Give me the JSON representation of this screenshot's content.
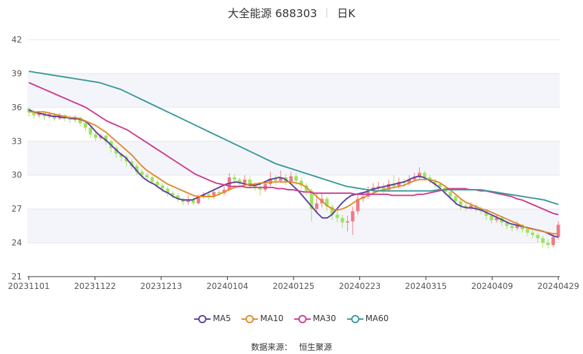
{
  "header": {
    "stock_title": "大全能源 688303",
    "period": "日K"
  },
  "footer": {
    "source_label": "数据来源：",
    "source_name": "恒生聚源"
  },
  "colors": {
    "up": "#f07b85",
    "down": "#9ee45c",
    "MA5": "#5b3fa3",
    "MA10": "#e08b2e",
    "MA30": "#cc3d8f",
    "MA60": "#3a9a9a"
  },
  "chart_data": {
    "type": "candlestick",
    "title": "大全能源 688303",
    "ylim": [
      21,
      42
    ],
    "yticks": [
      21,
      24,
      27,
      30,
      33,
      36,
      39,
      42
    ],
    "xtick_labels": [
      "20231101",
      "20231122",
      "20231213",
      "20240104",
      "20240125",
      "20240223",
      "20240315",
      "20240409",
      "20240429"
    ],
    "xtick_indices": [
      0,
      15,
      30,
      45,
      60,
      75,
      90,
      105,
      120
    ],
    "series": [
      {
        "name": "MA5",
        "values": [
          35.8,
          35.6,
          35.5,
          35.4,
          35.3,
          35.2,
          35.2,
          35.1,
          35.1,
          35.0,
          35.0,
          34.9,
          34.7,
          34.3,
          33.8,
          33.4,
          33.1,
          32.7,
          32.3,
          31.9,
          31.6,
          31.1,
          30.6,
          30.1,
          29.7,
          29.4,
          29.2,
          28.9,
          28.6,
          28.4,
          28.1,
          27.9,
          27.8,
          27.8,
          27.8,
          28.0,
          28.2,
          28.4,
          28.6,
          28.8,
          29.0,
          29.2,
          29.3,
          29.4,
          29.3,
          29.2,
          29.1,
          29.1,
          29.2,
          29.4,
          29.6,
          29.7,
          29.8,
          29.7,
          29.4,
          29.0,
          28.6,
          28.1,
          27.6,
          27.1,
          26.6,
          26.2,
          26.2,
          26.5,
          27.0,
          27.5,
          27.9,
          28.2,
          28.3,
          28.4,
          28.5,
          28.7,
          28.8,
          28.9,
          29.0,
          29.1,
          29.2,
          29.3,
          29.4,
          29.6,
          29.8,
          29.9,
          29.8,
          29.6,
          29.3,
          29.0,
          28.6,
          28.2,
          27.8,
          27.4,
          27.2,
          27.1,
          27.1,
          27.0,
          26.9,
          26.7,
          26.5,
          26.3,
          26.1,
          25.9,
          25.7,
          25.6,
          25.5,
          25.4,
          25.3,
          25.2,
          25.1,
          25.0,
          24.8,
          24.6,
          24.5
        ],
        "note_x_start": 0
      },
      {
        "name": "MA10",
        "values": [
          35.6,
          35.6,
          35.6,
          35.6,
          35.5,
          35.4,
          35.3,
          35.2,
          35.1,
          35.1,
          35.0,
          34.8,
          34.6,
          34.4,
          34.1,
          33.8,
          33.4,
          33.0,
          32.6,
          32.2,
          31.8,
          31.3,
          30.8,
          30.4,
          30.1,
          29.8,
          29.5,
          29.2,
          29.0,
          28.8,
          28.6,
          28.4,
          28.2,
          28.1,
          28.1,
          28.1,
          28.1,
          28.3,
          28.5,
          28.7,
          28.9,
          29.0,
          29.1,
          29.2,
          29.2,
          29.3,
          29.3,
          29.4,
          29.4,
          29.4,
          29.4,
          29.4,
          29.3,
          29.2,
          28.9,
          28.5,
          28.1,
          27.7,
          27.3,
          27.0,
          26.9,
          27.0,
          27.2,
          27.5,
          27.8,
          28.0,
          28.2,
          28.4,
          28.6,
          28.7,
          28.8,
          28.9,
          29.0,
          29.1,
          29.3,
          29.5,
          29.6,
          29.6,
          29.6,
          29.5,
          29.3,
          29.0,
          28.7,
          28.3,
          27.9,
          27.6,
          27.4,
          27.2,
          27.0,
          26.9,
          26.7,
          26.5,
          26.3,
          26.1,
          25.9,
          25.7,
          25.5,
          25.3,
          25.2,
          25.1,
          25.0,
          24.9,
          24.8,
          24.8
        ],
        "note_x_start": 0
      },
      {
        "name": "MA30",
        "values": [
          38.2,
          38.0,
          37.8,
          37.6,
          37.4,
          37.2,
          37.0,
          36.8,
          36.6,
          36.4,
          36.2,
          36.0,
          35.7,
          35.4,
          35.1,
          34.8,
          34.6,
          34.4,
          34.2,
          34.0,
          33.7,
          33.4,
          33.1,
          32.8,
          32.5,
          32.2,
          31.9,
          31.6,
          31.3,
          31.0,
          30.7,
          30.4,
          30.1,
          29.9,
          29.7,
          29.5,
          29.3,
          29.2,
          29.1,
          29.0,
          29.0,
          29.0,
          28.9,
          28.9,
          28.9,
          28.9,
          28.9,
          28.9,
          28.8,
          28.8,
          28.7,
          28.7,
          28.6,
          28.5,
          28.5,
          28.4,
          28.4,
          28.4,
          28.4,
          28.4,
          28.4,
          28.4,
          28.4,
          28.3,
          28.3,
          28.3,
          28.3,
          28.3,
          28.3,
          28.3,
          28.2,
          28.2,
          28.2,
          28.2,
          28.2,
          28.3,
          28.3,
          28.4,
          28.5,
          28.6,
          28.7,
          28.8,
          28.8,
          28.8,
          28.8,
          28.7,
          28.7,
          28.6,
          28.6,
          28.5,
          28.4,
          28.3,
          28.2,
          28.1,
          27.9,
          27.8,
          27.6,
          27.4,
          27.2,
          27.0,
          26.8,
          26.6,
          26.5
        ],
        "note_x_start": 0
      },
      {
        "name": "MA60",
        "values": [
          39.2,
          39.1,
          39.0,
          38.9,
          38.8,
          38.7,
          38.6,
          38.5,
          38.4,
          38.3,
          38.2,
          38.0,
          37.8,
          37.6,
          37.3,
          37.0,
          36.7,
          36.4,
          36.1,
          35.8,
          35.5,
          35.2,
          34.9,
          34.6,
          34.3,
          34.0,
          33.7,
          33.4,
          33.1,
          32.8,
          32.5,
          32.2,
          31.9,
          31.6,
          31.3,
          31.0,
          30.8,
          30.6,
          30.4,
          30.2,
          30.0,
          29.8,
          29.6,
          29.4,
          29.2,
          29.0,
          28.9,
          28.8,
          28.7,
          28.6,
          28.6,
          28.6,
          28.6,
          28.6,
          28.6,
          28.6,
          28.6,
          28.6,
          28.7,
          28.7,
          28.7,
          28.7,
          28.7,
          28.7,
          28.7,
          28.6,
          28.5,
          28.4,
          28.3,
          28.2,
          28.1,
          28.0,
          27.9,
          27.8,
          27.6,
          27.4
        ],
        "note_x_start": 0
      }
    ],
    "candles": [
      [
        35.9,
        35.6,
        36.0,
        35.2
      ],
      [
        35.6,
        35.3,
        35.8,
        35.0
      ],
      [
        35.3,
        35.5,
        35.7,
        35.1
      ],
      [
        35.5,
        35.2,
        35.6,
        34.9
      ],
      [
        35.2,
        35.4,
        35.6,
        35.0
      ],
      [
        35.4,
        35.0,
        35.5,
        34.8
      ],
      [
        35.0,
        35.3,
        35.5,
        34.9
      ],
      [
        35.3,
        35.1,
        35.4,
        34.8
      ],
      [
        35.1,
        34.9,
        35.3,
        34.6
      ],
      [
        34.9,
        35.1,
        35.3,
        34.7
      ],
      [
        35.1,
        34.6,
        35.2,
        34.3
      ],
      [
        34.6,
        34.2,
        34.8,
        33.9
      ],
      [
        34.2,
        33.6,
        34.3,
        33.3
      ],
      [
        33.6,
        33.3,
        33.8,
        33.0
      ],
      [
        33.3,
        33.5,
        33.7,
        33.1
      ],
      [
        33.5,
        33.0,
        33.6,
        32.7
      ],
      [
        33.0,
        32.4,
        33.1,
        32.0
      ],
      [
        32.4,
        31.9,
        32.6,
        31.5
      ],
      [
        31.9,
        31.6,
        32.0,
        31.2
      ],
      [
        31.6,
        31.2,
        31.8,
        30.8
      ],
      [
        31.2,
        30.8,
        31.4,
        30.5
      ],
      [
        30.8,
        30.3,
        31.0,
        30.0
      ],
      [
        30.3,
        30.0,
        30.5,
        29.6
      ],
      [
        30.0,
        29.8,
        30.2,
        29.5
      ],
      [
        29.8,
        29.4,
        30.0,
        29.2
      ],
      [
        29.4,
        29.1,
        29.6,
        28.8
      ],
      [
        29.1,
        28.8,
        29.3,
        28.5
      ],
      [
        28.8,
        28.4,
        29.0,
        28.1
      ],
      [
        28.4,
        28.2,
        28.6,
        27.9
      ],
      [
        28.2,
        27.9,
        28.4,
        27.6
      ],
      [
        27.9,
        27.6,
        28.0,
        27.3
      ],
      [
        27.6,
        27.8,
        28.2,
        27.4
      ],
      [
        27.8,
        27.5,
        28.0,
        27.3
      ],
      [
        27.5,
        28.1,
        28.3,
        27.4
      ],
      [
        28.1,
        28.3,
        28.5,
        27.9
      ],
      [
        28.3,
        28.1,
        28.6,
        27.8
      ],
      [
        28.1,
        28.5,
        28.8,
        27.9
      ],
      [
        28.5,
        28.4,
        28.7,
        28.1
      ],
      [
        28.4,
        28.7,
        29.0,
        28.2
      ],
      [
        28.7,
        29.8,
        30.2,
        28.6
      ],
      [
        29.8,
        29.6,
        30.1,
        29.2
      ],
      [
        29.6,
        29.3,
        29.8,
        28.9
      ],
      [
        29.3,
        29.6,
        30.0,
        29.1
      ],
      [
        29.6,
        29.2,
        29.9,
        28.8
      ],
      [
        29.2,
        28.9,
        29.4,
        28.6
      ],
      [
        28.9,
        28.7,
        29.1,
        28.2
      ],
      [
        28.7,
        29.2,
        29.5,
        28.5
      ],
      [
        29.2,
        29.7,
        30.3,
        29.0
      ],
      [
        29.7,
        29.5,
        30.0,
        29.1
      ],
      [
        29.5,
        29.8,
        30.4,
        29.3
      ],
      [
        29.8,
        29.4,
        30.1,
        29.1
      ],
      [
        29.4,
        29.9,
        30.3,
        29.2
      ],
      [
        29.9,
        29.5,
        30.2,
        29.1
      ],
      [
        29.5,
        29.1,
        29.8,
        28.8
      ],
      [
        29.1,
        28.6,
        29.3,
        28.2
      ],
      [
        28.6,
        27.0,
        28.8,
        25.9
      ],
      [
        27.0,
        27.5,
        28.3,
        26.7
      ],
      [
        27.5,
        27.9,
        28.4,
        27.1
      ],
      [
        27.9,
        27.2,
        28.1,
        26.8
      ],
      [
        27.2,
        26.5,
        27.4,
        26.0
      ],
      [
        26.5,
        26.2,
        26.9,
        25.8
      ],
      [
        26.2,
        25.8,
        26.5,
        25.3
      ],
      [
        25.8,
        25.9,
        26.4,
        25.0
      ],
      [
        25.9,
        26.8,
        27.2,
        24.7
      ],
      [
        26.8,
        27.9,
        28.3,
        26.5
      ],
      [
        27.9,
        28.1,
        28.5,
        27.6
      ],
      [
        28.1,
        28.6,
        29.0,
        27.9
      ],
      [
        28.6,
        28.9,
        29.3,
        28.4
      ],
      [
        28.9,
        29.0,
        29.4,
        28.6
      ],
      [
        29.0,
        28.7,
        29.3,
        28.4
      ],
      [
        28.7,
        29.2,
        29.6,
        28.5
      ],
      [
        29.2,
        29.0,
        30.0,
        28.8
      ],
      [
        29.0,
        29.4,
        29.8,
        28.8
      ],
      [
        29.4,
        29.3,
        29.7,
        28.9
      ],
      [
        29.3,
        29.6,
        30.0,
        29.1
      ],
      [
        29.6,
        29.8,
        30.2,
        29.4
      ],
      [
        29.8,
        30.2,
        30.7,
        29.6
      ],
      [
        30.2,
        29.8,
        30.4,
        29.5
      ],
      [
        29.8,
        29.5,
        30.0,
        29.2
      ],
      [
        29.5,
        29.2,
        29.7,
        28.9
      ],
      [
        29.2,
        28.9,
        29.4,
        28.6
      ],
      [
        28.9,
        28.5,
        29.1,
        28.2
      ],
      [
        28.5,
        28.1,
        28.7,
        27.8
      ],
      [
        28.1,
        27.7,
        28.3,
        27.3
      ],
      [
        27.7,
        27.3,
        27.9,
        26.9
      ],
      [
        27.3,
        27.1,
        27.5,
        26.8
      ],
      [
        27.1,
        27.3,
        27.6,
        26.9
      ],
      [
        27.3,
        27.0,
        27.4,
        26.7
      ],
      [
        27.0,
        26.8,
        27.2,
        26.5
      ],
      [
        26.8,
        26.4,
        26.9,
        26.0
      ],
      [
        26.4,
        26.0,
        26.5,
        25.7
      ],
      [
        26.0,
        26.2,
        26.5,
        25.8
      ],
      [
        26.2,
        25.8,
        26.3,
        25.5
      ],
      [
        25.8,
        25.5,
        25.9,
        25.2
      ],
      [
        25.5,
        25.3,
        25.6,
        25.0
      ],
      [
        25.3,
        25.6,
        25.9,
        25.1
      ],
      [
        25.6,
        25.2,
        25.7,
        24.9
      ],
      [
        25.2,
        24.9,
        25.3,
        24.6
      ],
      [
        24.9,
        24.7,
        25.1,
        24.4
      ],
      [
        24.7,
        24.4,
        24.9,
        24.0
      ],
      [
        24.4,
        24.0,
        24.6,
        23.6
      ],
      [
        24.0,
        23.8,
        24.3,
        23.5
      ],
      [
        23.8,
        24.5,
        24.8,
        23.6
      ],
      [
        24.5,
        25.6,
        25.9,
        24.3
      ]
    ]
  }
}
